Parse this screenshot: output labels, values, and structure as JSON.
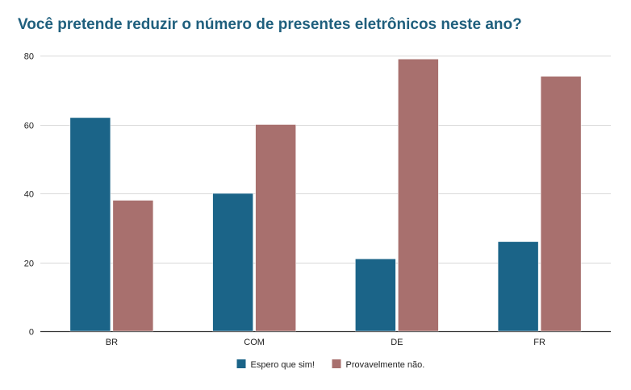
{
  "chart_data": {
    "type": "bar",
    "title": "Você pretende reduzir o número de presentes eletrônicos neste ano?",
    "categories": [
      "BR",
      "COM",
      "DE",
      "FR"
    ],
    "series": [
      {
        "name": "Espero que sim!",
        "values": [
          62,
          40,
          21,
          26
        ],
        "color": "#1b6488"
      },
      {
        "name": "Provavelmente não.",
        "values": [
          38,
          60,
          79,
          74
        ],
        "color": "#a8706e"
      }
    ],
    "xlabel": "",
    "ylabel": "",
    "ylim": [
      0,
      80
    ],
    "yticks": [
      0,
      20,
      40,
      60,
      80
    ],
    "grid": true,
    "legend_position": "bottom"
  }
}
